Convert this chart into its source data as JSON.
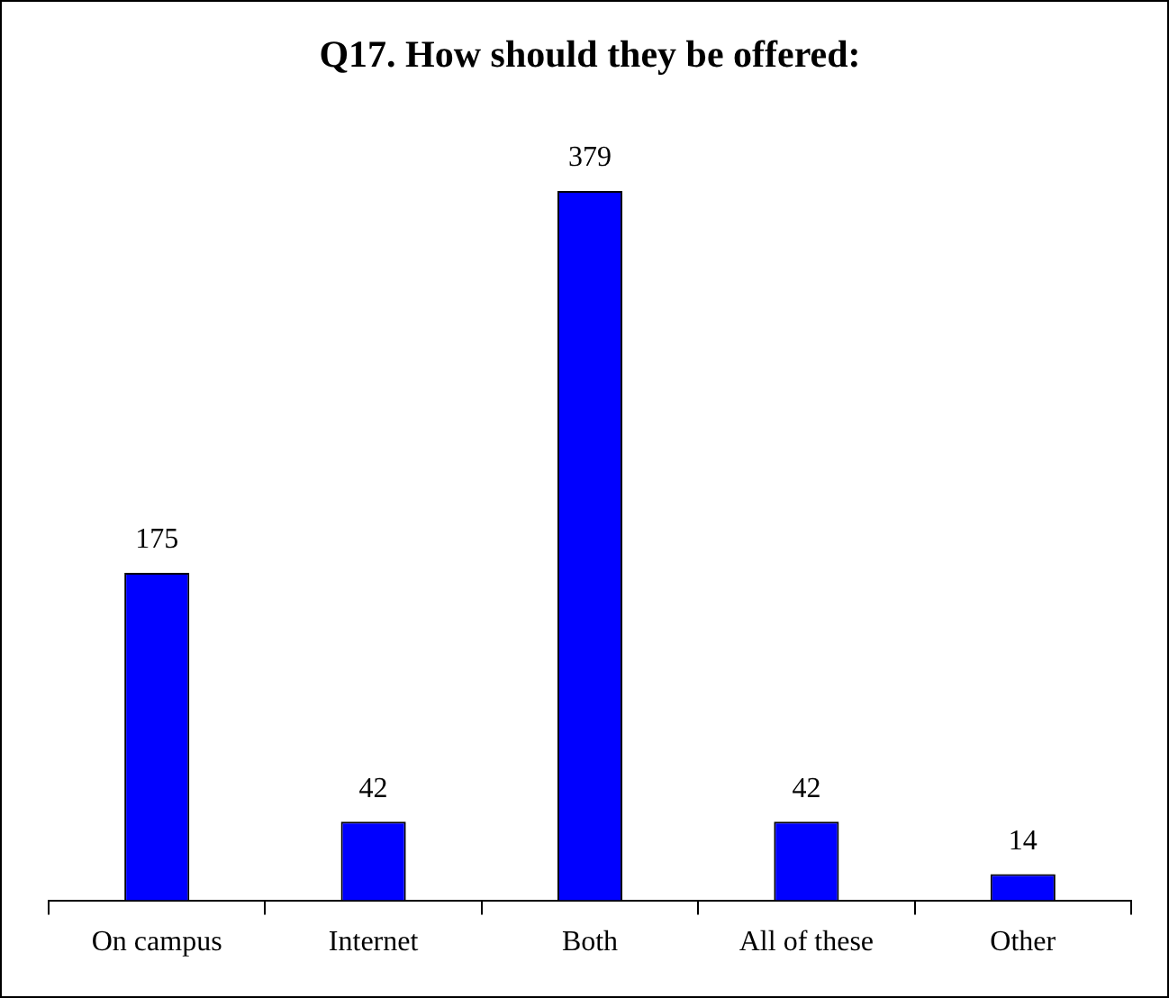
{
  "chart_data": {
    "type": "bar",
    "title": "Q17. How should they be offered:",
    "categories": [
      "On campus",
      "Internet",
      "Both",
      "All of these",
      "Other"
    ],
    "values": [
      175,
      42,
      379,
      42,
      14
    ],
    "color": "#0000ff",
    "data_labels": true,
    "grid": false,
    "legend": false
  }
}
